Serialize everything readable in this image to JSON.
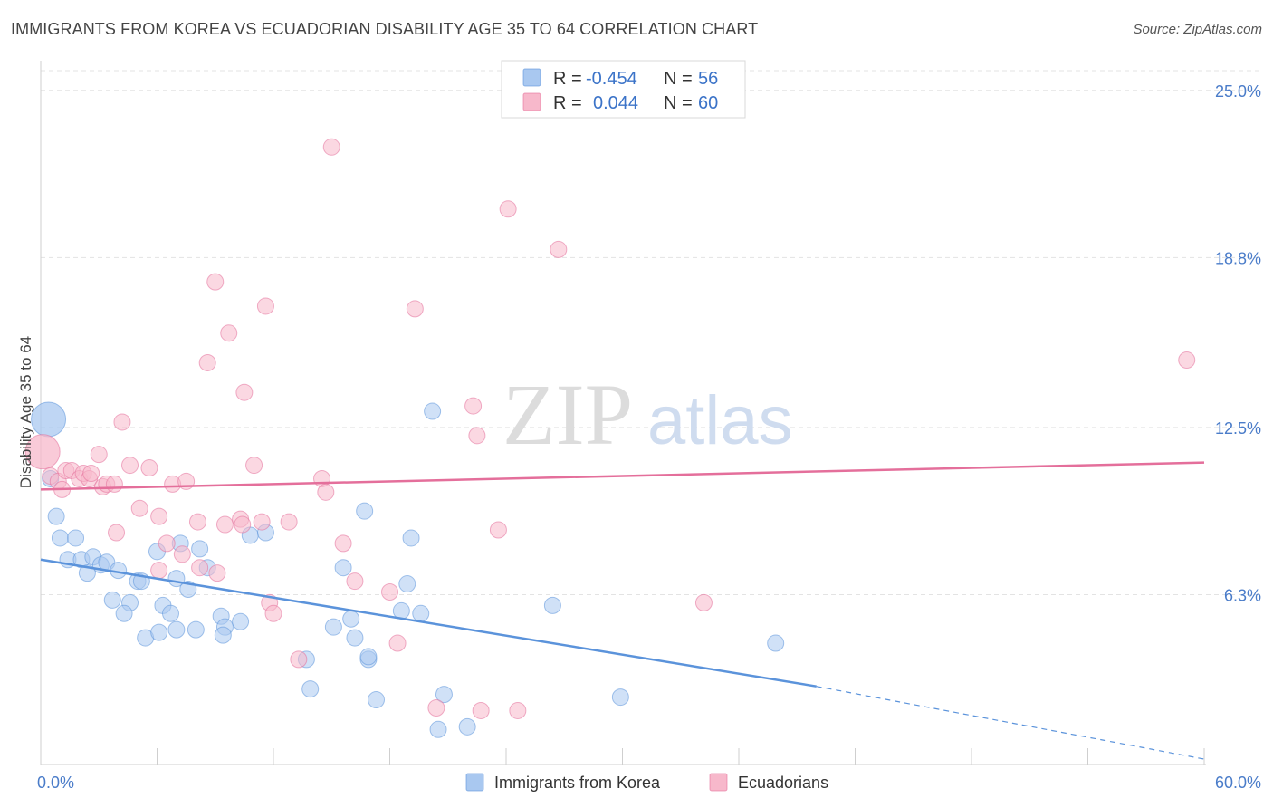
{
  "title": "IMMIGRANTS FROM KOREA VS ECUADORIAN DISABILITY AGE 35 TO 64 CORRELATION CHART",
  "source": "Source: ZipAtlas.com",
  "watermark": {
    "zip": "ZIP",
    "atlas": "atlas"
  },
  "legend_top": {
    "rows": [
      {
        "r_label": "R =",
        "r_value": "-0.454",
        "n_label": "N =",
        "n_value": "56",
        "color": "#a9c8f0"
      },
      {
        "r_label": "R =",
        "r_value": "0.044",
        "n_label": "N =",
        "n_value": "60",
        "color": "#f7b8cb"
      }
    ]
  },
  "legend_bottom": {
    "items": [
      {
        "label": "Immigrants from Korea",
        "color": "#a9c8f0"
      },
      {
        "label": "Ecuadorians",
        "color": "#f7b8cb"
      }
    ]
  },
  "chart_data": {
    "type": "scatter",
    "title": "IMMIGRANTS FROM KOREA VS ECUADORIAN DISABILITY AGE 35 TO 64 CORRELATION CHART",
    "xlabel": "",
    "ylabel": "Disability Age 35 to 64",
    "xlim": [
      0,
      60
    ],
    "ylim": [
      0,
      25.9
    ],
    "x_tick_labels": [
      "0.0%",
      "60.0%"
    ],
    "y_ticks": [
      6.3,
      12.5,
      18.8,
      25.0
    ],
    "y_tick_labels": [
      "6.3%",
      "12.5%",
      "18.8%",
      "25.0%"
    ],
    "grid": true,
    "series": [
      {
        "name": "Immigrants from Korea",
        "color": "#5b93db",
        "fill": "#a9c8f0",
        "trend": {
          "x0": 0,
          "y0": 7.6,
          "x1": 40,
          "y1": 2.9,
          "dash_to_x": 60,
          "dash_to_y": 0.2
        },
        "points": [
          [
            0.4,
            12.8,
            "big"
          ],
          [
            0.5,
            10.6
          ],
          [
            0.8,
            9.2
          ],
          [
            1.0,
            8.4
          ],
          [
            1.8,
            8.4
          ],
          [
            1.4,
            7.6
          ],
          [
            2.1,
            7.6
          ],
          [
            2.7,
            7.7
          ],
          [
            3.1,
            7.4
          ],
          [
            3.4,
            7.5
          ],
          [
            2.4,
            7.1
          ],
          [
            4.0,
            7.2
          ],
          [
            5.0,
            6.8
          ],
          [
            5.2,
            6.8
          ],
          [
            3.7,
            6.1
          ],
          [
            4.6,
            6.0
          ],
          [
            4.3,
            5.6
          ],
          [
            6.0,
            7.9
          ],
          [
            6.3,
            5.9
          ],
          [
            6.7,
            5.6
          ],
          [
            7.0,
            6.9
          ],
          [
            7.2,
            8.2
          ],
          [
            7.6,
            6.5
          ],
          [
            8.2,
            8.0
          ],
          [
            8.6,
            7.3
          ],
          [
            9.3,
            5.5
          ],
          [
            9.5,
            5.1
          ],
          [
            9.4,
            4.8
          ],
          [
            10.3,
            5.3
          ],
          [
            10.8,
            8.5
          ],
          [
            11.6,
            8.6
          ],
          [
            7.0,
            5.0
          ],
          [
            8.0,
            5.0
          ],
          [
            5.4,
            4.7
          ],
          [
            6.1,
            4.9
          ],
          [
            13.7,
            3.9
          ],
          [
            13.9,
            2.8
          ],
          [
            15.1,
            5.1
          ],
          [
            15.6,
            7.3
          ],
          [
            16.0,
            5.4
          ],
          [
            16.2,
            4.7
          ],
          [
            16.7,
            9.4
          ],
          [
            16.9,
            3.9
          ],
          [
            16.9,
            4.0
          ],
          [
            17.3,
            2.4
          ],
          [
            18.6,
            5.7
          ],
          [
            18.9,
            6.7
          ],
          [
            19.1,
            8.4
          ],
          [
            19.6,
            5.6
          ],
          [
            20.2,
            13.1
          ],
          [
            20.5,
            1.3
          ],
          [
            20.8,
            2.6
          ],
          [
            22.0,
            1.4
          ],
          [
            26.4,
            5.9
          ],
          [
            29.9,
            2.5
          ],
          [
            37.9,
            4.5
          ]
        ]
      },
      {
        "name": "Ecuadorians",
        "color": "#e46f9b",
        "fill": "#f7b8cb",
        "trend": {
          "x0": 0,
          "y0": 10.2,
          "x1": 60,
          "y1": 11.2
        },
        "points": [
          [
            0.1,
            11.6,
            "big"
          ],
          [
            0.5,
            10.7
          ],
          [
            0.9,
            10.5
          ],
          [
            1.1,
            10.2
          ],
          [
            1.3,
            10.9
          ],
          [
            1.6,
            10.9
          ],
          [
            2.0,
            10.6
          ],
          [
            2.2,
            10.8
          ],
          [
            2.5,
            10.6
          ],
          [
            2.6,
            10.8
          ],
          [
            3.0,
            11.5
          ],
          [
            3.2,
            10.3
          ],
          [
            3.4,
            10.4
          ],
          [
            3.8,
            10.4
          ],
          [
            3.9,
            8.6
          ],
          [
            4.2,
            12.7
          ],
          [
            4.6,
            11.1
          ],
          [
            5.1,
            9.5
          ],
          [
            5.6,
            11.0
          ],
          [
            6.1,
            9.2
          ],
          [
            6.1,
            7.2
          ],
          [
            6.5,
            8.2
          ],
          [
            6.8,
            10.4
          ],
          [
            7.3,
            7.8
          ],
          [
            7.5,
            10.5
          ],
          [
            8.1,
            9.0
          ],
          [
            8.2,
            7.3
          ],
          [
            8.6,
            14.9
          ],
          [
            9.1,
            7.1
          ],
          [
            9.0,
            17.9
          ],
          [
            9.5,
            8.9
          ],
          [
            9.7,
            16.0
          ],
          [
            10.3,
            9.1
          ],
          [
            10.4,
            8.9
          ],
          [
            10.5,
            13.8
          ],
          [
            11.0,
            11.1
          ],
          [
            11.4,
            9.0
          ],
          [
            11.6,
            17.0
          ],
          [
            11.8,
            6.0
          ],
          [
            12.0,
            5.6
          ],
          [
            12.8,
            9.0
          ],
          [
            13.3,
            3.9
          ],
          [
            14.5,
            10.6
          ],
          [
            14.7,
            10.1
          ],
          [
            15.0,
            22.9
          ],
          [
            15.6,
            8.2
          ],
          [
            16.2,
            6.8
          ],
          [
            18.0,
            6.4
          ],
          [
            18.4,
            4.5
          ],
          [
            19.3,
            16.9
          ],
          [
            20.4,
            2.1
          ],
          [
            22.3,
            13.3
          ],
          [
            22.5,
            12.2
          ],
          [
            22.7,
            2.0
          ],
          [
            23.6,
            8.7
          ],
          [
            24.1,
            20.6
          ],
          [
            24.6,
            2.0
          ],
          [
            26.7,
            19.1
          ],
          [
            34.2,
            6.0
          ],
          [
            59.1,
            15.0
          ]
        ]
      }
    ]
  }
}
